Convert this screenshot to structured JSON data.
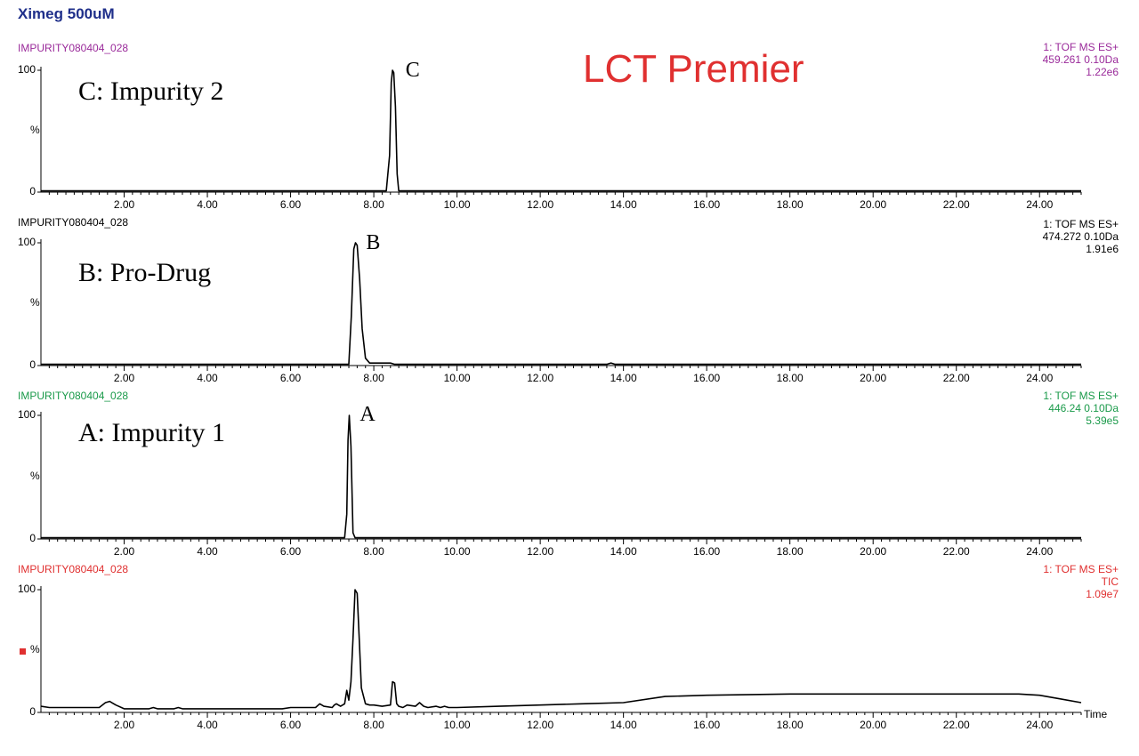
{
  "header": {
    "title": "Ximeg 500uM",
    "title_color": "#1f2f8a"
  },
  "instrument": {
    "label": "LCT Premier",
    "color": "#e03030"
  },
  "x_axis_label": "Time",
  "chart_data": [
    {
      "type": "line",
      "sample": "IMPURITY080404_028",
      "color": "#9a2a9a",
      "info": [
        "1: TOF MS ES+",
        "459.261 0.10Da",
        "1.22e6"
      ],
      "compound_label": "C: Impurity 2",
      "peak_label": "C",
      "peak_x": 8.55,
      "ylabel": "%",
      "y_ticks": [
        "100",
        "0"
      ],
      "xlim": [
        0,
        25
      ],
      "ylim": [
        0,
        100
      ],
      "x_ticks": [
        "2.00",
        "4.00",
        "6.00",
        "8.00",
        "10.00",
        "12.00",
        "14.00",
        "16.00",
        "18.00",
        "20.00",
        "22.00",
        "24.00"
      ],
      "series": [
        {
          "x": [
            0,
            2,
            4,
            6,
            8.0,
            8.3,
            8.38,
            8.42,
            8.45,
            8.48,
            8.52,
            8.56,
            8.6,
            8.8,
            10,
            14,
            18,
            22,
            25
          ],
          "y": [
            1,
            1,
            1,
            1,
            1,
            1,
            30,
            90,
            100,
            98,
            70,
            15,
            1,
            1,
            1,
            1,
            1,
            1,
            1
          ]
        }
      ]
    },
    {
      "type": "line",
      "sample": "IMPURITY080404_028",
      "color": "#000000",
      "info": [
        "1: TOF MS ES+",
        "474.272 0.10Da",
        "1.91e6"
      ],
      "compound_label": "B: Pro-Drug",
      "peak_label": "B",
      "peak_x": 7.6,
      "ylabel": "%",
      "y_ticks": [
        "100",
        "0"
      ],
      "xlim": [
        0,
        25
      ],
      "ylim": [
        0,
        100
      ],
      "x_ticks": [
        "2.00",
        "4.00",
        "6.00",
        "8.00",
        "10.00",
        "12.00",
        "14.00",
        "16.00",
        "18.00",
        "20.00",
        "22.00",
        "24.00"
      ],
      "series": [
        {
          "x": [
            0,
            2,
            4,
            6,
            7.3,
            7.4,
            7.46,
            7.52,
            7.56,
            7.6,
            7.66,
            7.72,
            7.8,
            7.9,
            8.0,
            8.2,
            8.4,
            8.5,
            13.6,
            13.7,
            13.8,
            25
          ],
          "y": [
            1,
            1,
            1,
            1,
            1,
            1,
            40,
            95,
            100,
            98,
            70,
            30,
            6,
            2,
            2,
            2,
            2,
            1,
            1,
            2,
            1,
            1
          ]
        }
      ]
    },
    {
      "type": "line",
      "sample": "IMPURITY080404_028",
      "color": "#1a9a4a",
      "info": [
        "1: TOF MS ES+",
        "446.24 0.10Da",
        "5.39e5"
      ],
      "compound_label": "A: Impurity 1",
      "peak_label": "A",
      "peak_x": 7.45,
      "ylabel": "%",
      "y_ticks": [
        "100",
        "0"
      ],
      "xlim": [
        0,
        25
      ],
      "ylim": [
        0,
        100
      ],
      "x_ticks": [
        "2.00",
        "4.00",
        "6.00",
        "8.00",
        "10.00",
        "12.00",
        "14.00",
        "16.00",
        "18.00",
        "20.00",
        "22.00",
        "24.00"
      ],
      "series": [
        {
          "x": [
            0,
            2,
            4,
            6,
            7.2,
            7.3,
            7.35,
            7.38,
            7.41,
            7.45,
            7.5,
            7.55,
            8,
            12,
            16,
            20,
            25
          ],
          "y": [
            1,
            1,
            1,
            1,
            1,
            1,
            20,
            80,
            100,
            75,
            5,
            1,
            1,
            1,
            1,
            1,
            1
          ]
        }
      ]
    },
    {
      "type": "line",
      "sample": "IMPURITY080404_028",
      "color": "#e03030",
      "info": [
        "1: TOF MS ES+",
        "TIC",
        "1.09e7"
      ],
      "compound_label": "",
      "peak_label": "",
      "ylabel": "%",
      "y_ticks": [
        "100",
        "0"
      ],
      "xlim": [
        0,
        25
      ],
      "ylim": [
        0,
        100
      ],
      "x_ticks": [
        "2.00",
        "4.00",
        "6.00",
        "8.00",
        "10.00",
        "12.00",
        "14.00",
        "16.00",
        "18.00",
        "20.00",
        "22.00",
        "24.00"
      ],
      "series": [
        {
          "x": [
            0,
            0.2,
            0.8,
            1.4,
            1.55,
            1.65,
            1.8,
            2.0,
            2.6,
            2.7,
            2.8,
            3.2,
            3.3,
            3.4,
            4.0,
            5.0,
            5.8,
            6.0,
            6.6,
            6.7,
            6.8,
            7.0,
            7.05,
            7.1,
            7.2,
            7.3,
            7.35,
            7.4,
            7.45,
            7.5,
            7.55,
            7.6,
            7.65,
            7.7,
            7.8,
            7.9,
            8.0,
            8.2,
            8.4,
            8.45,
            8.5,
            8.55,
            8.6,
            8.7,
            8.8,
            9.0,
            9.1,
            9.2,
            9.3,
            9.5,
            9.6,
            9.7,
            9.8,
            10.0,
            11.0,
            12.0,
            13.0,
            14.0,
            15.0,
            16.0,
            18.0,
            20.0,
            22.0,
            23.5,
            24.0,
            24.5,
            25.0
          ],
          "y": [
            5,
            4,
            4,
            4,
            8,
            9,
            6,
            3,
            3,
            4,
            3,
            3,
            4,
            3,
            3,
            3,
            3,
            4,
            4,
            7,
            5,
            4,
            6,
            7,
            5,
            7,
            18,
            10,
            25,
            60,
            100,
            97,
            60,
            20,
            7,
            6,
            6,
            5,
            6,
            25,
            24,
            7,
            5,
            4,
            6,
            5,
            8,
            5,
            4,
            5,
            4,
            5,
            4,
            4,
            5,
            6,
            7,
            8,
            13,
            14,
            15,
            15,
            15,
            15,
            14,
            11,
            8
          ]
        }
      ]
    }
  ]
}
